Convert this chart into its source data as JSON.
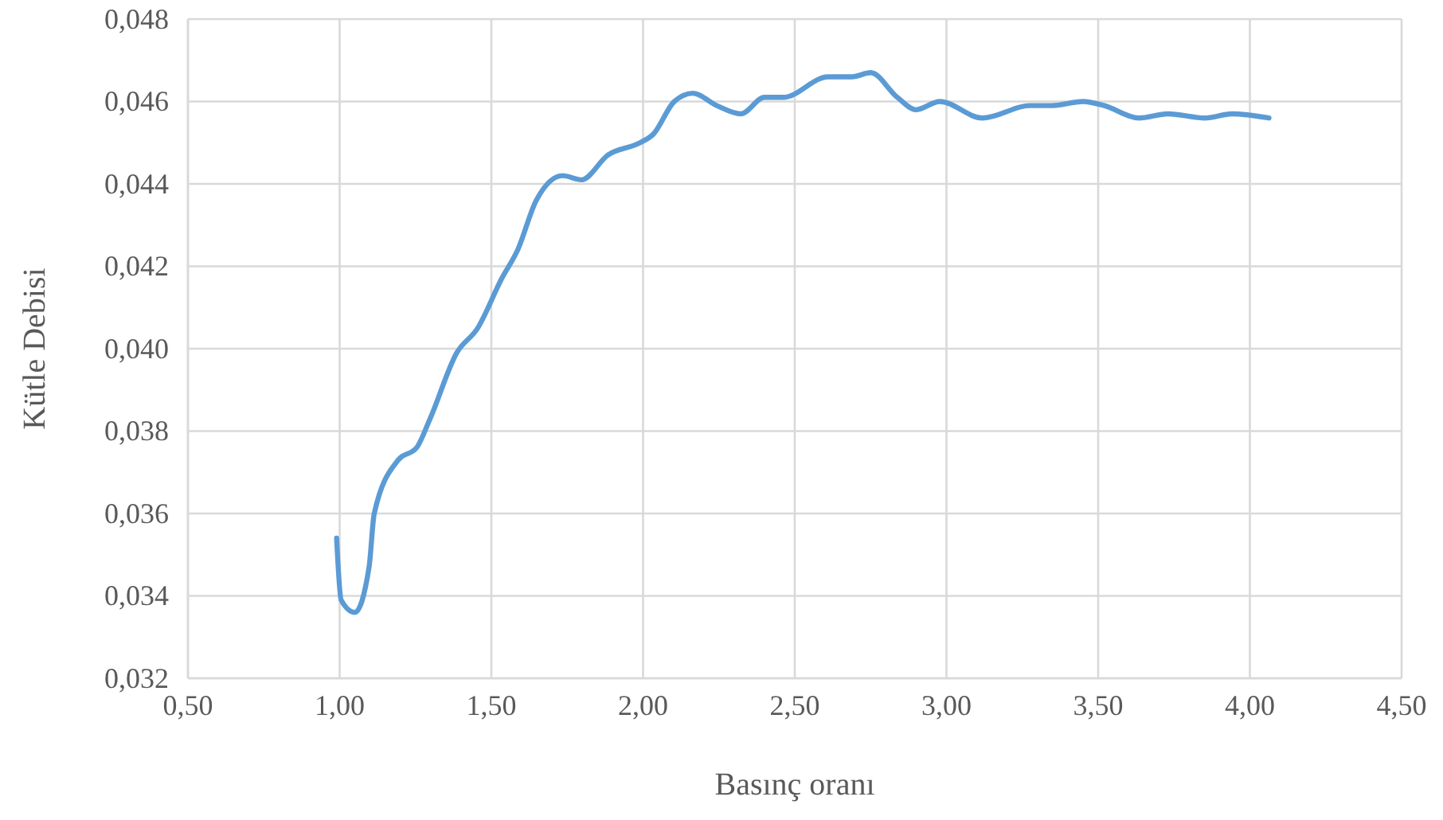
{
  "chart_data": {
    "type": "line",
    "xlabel": "Basınç oranı",
    "ylabel": "Kütle Debisi",
    "xlim": [
      0.5,
      4.5
    ],
    "xticks": [
      {
        "value": 0.5,
        "label": "0,50"
      },
      {
        "value": 1,
        "label": "1,00"
      },
      {
        "value": 1.5,
        "label": "1,50"
      },
      {
        "value": 2,
        "label": "2,00"
      },
      {
        "value": 2.5,
        "label": "2,50"
      },
      {
        "value": 3,
        "label": "3,00"
      },
      {
        "value": 3.5,
        "label": "3,50"
      },
      {
        "value": 4,
        "label": "4,00"
      },
      {
        "value": 4.5,
        "label": "4,50"
      }
    ],
    "ylim": [
      0.032,
      0.048
    ],
    "yticks": [
      {
        "value": 0.032,
        "label": "0,032"
      },
      {
        "value": 0.034,
        "label": "0,034"
      },
      {
        "value": 0.036,
        "label": "0,036"
      },
      {
        "value": 0.038,
        "label": "0,038"
      },
      {
        "value": 0.04,
        "label": "0,040"
      },
      {
        "value": 0.042,
        "label": "0,042"
      },
      {
        "value": 0.044,
        "label": "0,044"
      },
      {
        "value": 0.046,
        "label": "0,046"
      },
      {
        "value": 0.048,
        "label": "0,048"
      }
    ],
    "grid": true,
    "marker": "none",
    "line_style": "solid",
    "series": [
      {
        "color": "#5b9bd5",
        "x": [
          0.99,
          1.005,
          1.05,
          1.097,
          1.114,
          1.193,
          1.254,
          1.298,
          1.386,
          1.455,
          1.534,
          1.587,
          1.648,
          1.735,
          1.797,
          1.884,
          1.99,
          2.033,
          2.103,
          2.164,
          2.243,
          2.322,
          2.4,
          2.462,
          2.61,
          2.689,
          2.75,
          2.838,
          2.899,
          2.978,
          3.118,
          3.275,
          3.345,
          3.45,
          3.52,
          3.634,
          3.73,
          3.853,
          3.94,
          4.063
        ],
        "values": [
          0.0354,
          0.0339,
          0.0336,
          0.0347,
          0.036,
          0.0373,
          0.0376,
          0.0383,
          0.0399,
          0.0405,
          0.0417,
          0.0424,
          0.0436,
          0.0442,
          0.0441,
          0.0447,
          0.045,
          0.0452,
          0.046,
          0.0462,
          0.0459,
          0.0457,
          0.0461,
          0.0461,
          0.0466,
          0.0466,
          0.0467,
          0.0461,
          0.0458,
          0.046,
          0.0456,
          0.0459,
          0.0459,
          0.046,
          0.0459,
          0.0456,
          0.0457,
          0.0456,
          0.0457,
          0.0456
        ]
      }
    ]
  }
}
